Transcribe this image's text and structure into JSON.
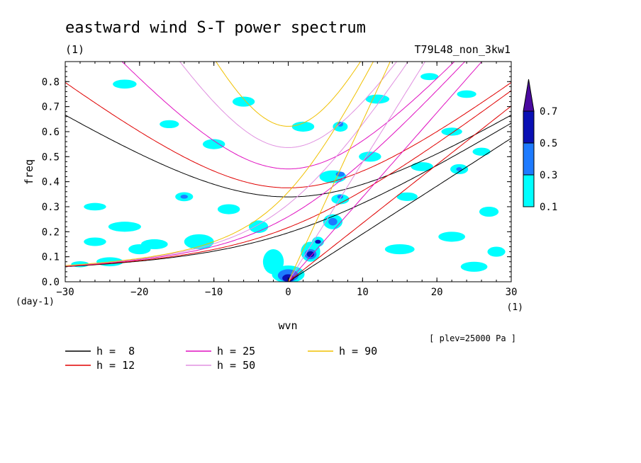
{
  "chart_data": {
    "type": "heatmap",
    "title": "eastward wind S-T power spectrum",
    "subtitle_left": "(1)",
    "subtitle_right": "T79L48_non_3kw1",
    "xlabel": "wvn",
    "ylabel": "freq",
    "x_unit": "(1)",
    "y_unit": "(day-1)",
    "level_note": "[ plev=25000 Pa ]",
    "xlim": [
      -30,
      30
    ],
    "ylim": [
      0,
      0.88
    ],
    "x_ticks": [
      "-30",
      "-20",
      "-10",
      "0",
      "10",
      "20",
      "30"
    ],
    "y_ticks": [
      "0.0",
      "0.1",
      "0.2",
      "0.3",
      "0.4",
      "0.5",
      "0.6",
      "0.7",
      "0.8"
    ],
    "colorbar": {
      "levels": [
        "0.1",
        "0.3",
        "0.5",
        "0.7"
      ],
      "colors": [
        "#00ffff",
        "#1e7bff",
        "#0a10b4",
        "#4a0aa0"
      ]
    },
    "shaded_regions": [
      {
        "level": 0,
        "x": -24,
        "y": 0.08,
        "rx": 1.8,
        "ry": 0.018
      },
      {
        "level": 0,
        "x": -20,
        "y": 0.13,
        "rx": 1.5,
        "ry": 0.02
      },
      {
        "level": 0,
        "x": -26,
        "y": 0.16,
        "rx": 1.5,
        "ry": 0.017
      },
      {
        "level": 0,
        "x": -22,
        "y": 0.22,
        "rx": 2.2,
        "ry": 0.02
      },
      {
        "level": 0,
        "x": -26,
        "y": 0.3,
        "rx": 1.5,
        "ry": 0.015
      },
      {
        "level": 0,
        "x": -28,
        "y": 0.07,
        "rx": 1.2,
        "ry": 0.012
      },
      {
        "level": 0,
        "x": -18,
        "y": 0.15,
        "rx": 1.8,
        "ry": 0.02
      },
      {
        "level": 0,
        "x": -12,
        "y": 0.16,
        "rx": 2.0,
        "ry": 0.03
      },
      {
        "level": 0,
        "x": -8,
        "y": 0.29,
        "rx": 1.5,
        "ry": 0.02
      },
      {
        "level": 0,
        "x": -4,
        "y": 0.22,
        "rx": 1.3,
        "ry": 0.025
      },
      {
        "level": 0,
        "x": -14,
        "y": 0.34,
        "rx": 1.2,
        "ry": 0.018
      },
      {
        "level": 1,
        "x": -14,
        "y": 0.34,
        "rx": 0.5,
        "ry": 0.008
      },
      {
        "level": 0,
        "x": -10,
        "y": 0.55,
        "rx": 1.5,
        "ry": 0.02
      },
      {
        "level": 0,
        "x": -16,
        "y": 0.63,
        "rx": 1.3,
        "ry": 0.016
      },
      {
        "level": 0,
        "x": -6,
        "y": 0.72,
        "rx": 1.5,
        "ry": 0.02
      },
      {
        "level": 0,
        "x": -22,
        "y": 0.79,
        "rx": 1.6,
        "ry": 0.018
      },
      {
        "level": 0,
        "x": 2,
        "y": 0.62,
        "rx": 1.5,
        "ry": 0.02
      },
      {
        "level": 0,
        "x": -2,
        "y": 0.08,
        "rx": 1.4,
        "ry": 0.05
      },
      {
        "level": 0,
        "x": 0,
        "y": 0.03,
        "rx": 2.2,
        "ry": 0.035
      },
      {
        "level": 1,
        "x": 0,
        "y": 0.025,
        "rx": 1.4,
        "ry": 0.025
      },
      {
        "level": 2,
        "x": 0,
        "y": 0.015,
        "rx": 0.8,
        "ry": 0.015
      },
      {
        "level": 0,
        "x": 3,
        "y": 0.12,
        "rx": 1.3,
        "ry": 0.04
      },
      {
        "level": 1,
        "x": 3,
        "y": 0.11,
        "rx": 0.8,
        "ry": 0.02
      },
      {
        "level": 2,
        "x": 3,
        "y": 0.11,
        "rx": 0.5,
        "ry": 0.012
      },
      {
        "level": 0,
        "x": 4,
        "y": 0.16,
        "rx": 0.8,
        "ry": 0.02
      },
      {
        "level": 2,
        "x": 4,
        "y": 0.16,
        "rx": 0.4,
        "ry": 0.008
      },
      {
        "level": 0,
        "x": 6,
        "y": 0.24,
        "rx": 1.3,
        "ry": 0.03
      },
      {
        "level": 1,
        "x": 6,
        "y": 0.24,
        "rx": 0.6,
        "ry": 0.015
      },
      {
        "level": 0,
        "x": 7,
        "y": 0.33,
        "rx": 1.2,
        "ry": 0.02
      },
      {
        "level": 1,
        "x": 7,
        "y": 0.34,
        "rx": 0.4,
        "ry": 0.008
      },
      {
        "level": 0,
        "x": 6,
        "y": 0.42,
        "rx": 1.8,
        "ry": 0.025
      },
      {
        "level": 1,
        "x": 7,
        "y": 0.43,
        "rx": 0.6,
        "ry": 0.01
      },
      {
        "level": 0,
        "x": 7,
        "y": 0.62,
        "rx": 1.0,
        "ry": 0.02
      },
      {
        "level": 1,
        "x": 7,
        "y": 0.63,
        "rx": 0.4,
        "ry": 0.01
      },
      {
        "level": 0,
        "x": 11,
        "y": 0.5,
        "rx": 1.5,
        "ry": 0.02
      },
      {
        "level": 0,
        "x": 12,
        "y": 0.73,
        "rx": 1.6,
        "ry": 0.018
      },
      {
        "level": 0,
        "x": 15,
        "y": 0.13,
        "rx": 2.0,
        "ry": 0.02
      },
      {
        "level": 0,
        "x": 16,
        "y": 0.34,
        "rx": 1.4,
        "ry": 0.017
      },
      {
        "level": 0,
        "x": 18,
        "y": 0.46,
        "rx": 1.5,
        "ry": 0.018
      },
      {
        "level": 0,
        "x": 22,
        "y": 0.18,
        "rx": 1.8,
        "ry": 0.02
      },
      {
        "level": 0,
        "x": 22,
        "y": 0.6,
        "rx": 1.4,
        "ry": 0.016
      },
      {
        "level": 0,
        "x": 23,
        "y": 0.45,
        "rx": 1.2,
        "ry": 0.02
      },
      {
        "level": 1,
        "x": 23,
        "y": 0.45,
        "rx": 0.4,
        "ry": 0.008
      },
      {
        "level": 0,
        "x": 25,
        "y": 0.06,
        "rx": 1.8,
        "ry": 0.02
      },
      {
        "level": 0,
        "x": 27,
        "y": 0.28,
        "rx": 1.3,
        "ry": 0.02
      },
      {
        "level": 0,
        "x": 24,
        "y": 0.75,
        "rx": 1.3,
        "ry": 0.015
      },
      {
        "level": 0,
        "x": 19,
        "y": 0.82,
        "rx": 1.2,
        "ry": 0.014
      },
      {
        "level": 0,
        "x": 26,
        "y": 0.52,
        "rx": 1.2,
        "ry": 0.016
      },
      {
        "level": 0,
        "x": 28,
        "y": 0.12,
        "rx": 1.2,
        "ry": 0.02
      }
    ],
    "series": [
      {
        "name": "h =  8",
        "color": "#000000",
        "h": 8
      },
      {
        "name": "h = 12",
        "color": "#e00000",
        "h": 12
      },
      {
        "name": "h = 25",
        "color": "#e010c0",
        "h": 25
      },
      {
        "name": "h = 50",
        "color": "#e090e0",
        "h": 50
      },
      {
        "name": "h = 90",
        "color": "#f0c000",
        "h": 90
      }
    ]
  }
}
